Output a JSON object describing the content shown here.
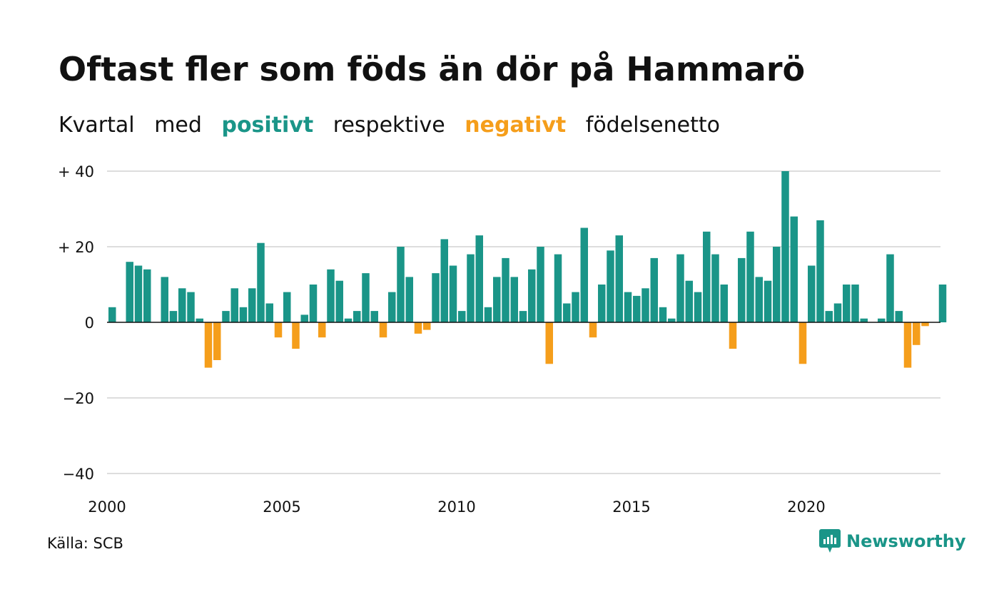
{
  "title": "Oftast fler som föds än dör på Hammarö",
  "subtitle": {
    "w1": "Kvartal",
    "w2": "med",
    "positive": "positivt",
    "w3": "respektive",
    "negative": "negativt",
    "w4": "födelsenetto"
  },
  "source": "Källa: SCB",
  "brand": {
    "name": "Newsworthy",
    "icon": "newsworthy-logo-icon"
  },
  "colors": {
    "positive": "#1a9588",
    "negative": "#f59e1b",
    "grid": "#dddddd",
    "text": "#111111"
  },
  "chart_data": {
    "type": "bar",
    "x_start": "2000-Q1",
    "x_ticks": [
      "2000",
      "2005",
      "2010",
      "2015",
      "2020"
    ],
    "ylim": [
      -40,
      40
    ],
    "y_ticks": [
      {
        "value": 40,
        "label": "+ 40"
      },
      {
        "value": 20,
        "label": "+ 20"
      },
      {
        "value": 0,
        "label": "0"
      },
      {
        "value": -20,
        "label": "−20"
      },
      {
        "value": -40,
        "label": "−40"
      }
    ],
    "grid": true,
    "values": [
      4,
      0,
      16,
      15,
      14,
      0,
      12,
      3,
      9,
      8,
      1,
      -12,
      -10,
      3,
      9,
      4,
      9,
      21,
      5,
      -4,
      8,
      -7,
      2,
      10,
      -4,
      14,
      11,
      1,
      3,
      13,
      3,
      -4,
      8,
      20,
      12,
      -3,
      -2,
      13,
      22,
      15,
      3,
      18,
      23,
      4,
      12,
      17,
      12,
      3,
      14,
      20,
      -11,
      18,
      5,
      8,
      25,
      -4,
      10,
      19,
      23,
      8,
      7,
      9,
      17,
      4,
      1,
      18,
      11,
      8,
      24,
      18,
      10,
      -7,
      17,
      24,
      12,
      11,
      20,
      40,
      28,
      -11,
      15,
      27,
      3,
      5,
      10,
      10,
      1,
      0,
      1,
      18,
      3,
      -12,
      -6,
      -1,
      0,
      10
    ]
  }
}
